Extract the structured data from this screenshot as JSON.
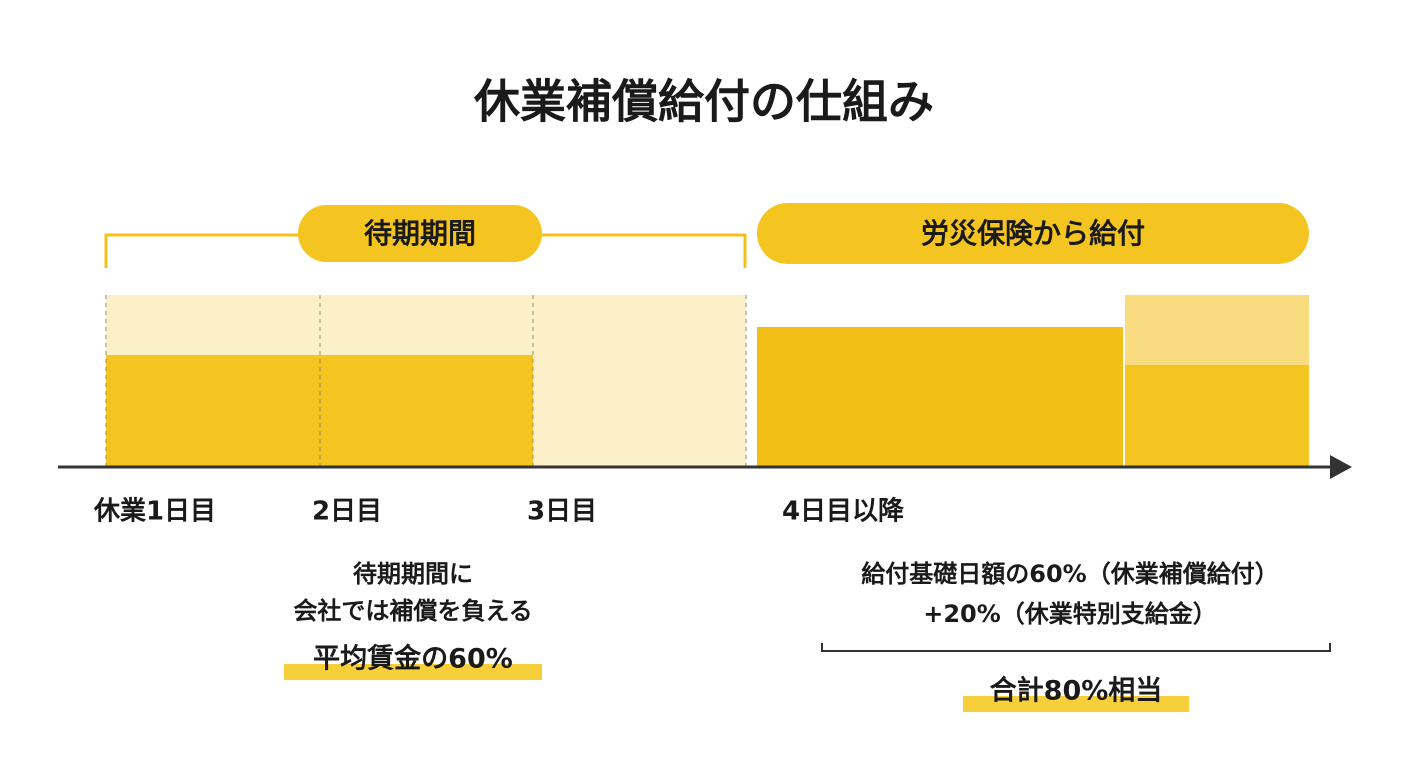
{
  "title": "休業補償給付の仕組み",
  "waiting_label": "待期期間",
  "insurance_label": "労災保険から給付",
  "days": [
    "休業1日目",
    "2日目",
    "3日目",
    "4日目以降"
  ],
  "left_note": {
    "lines": [
      "待期期間に",
      "会社では補償を負える"
    ],
    "highlight": "平均賃金の60%"
  },
  "right_note": {
    "lines": [
      "給付基礎日額の60%（休業補償給付）",
      "+20%（休業特別支給金）"
    ],
    "highlight": "合計80%相当"
  }
}
